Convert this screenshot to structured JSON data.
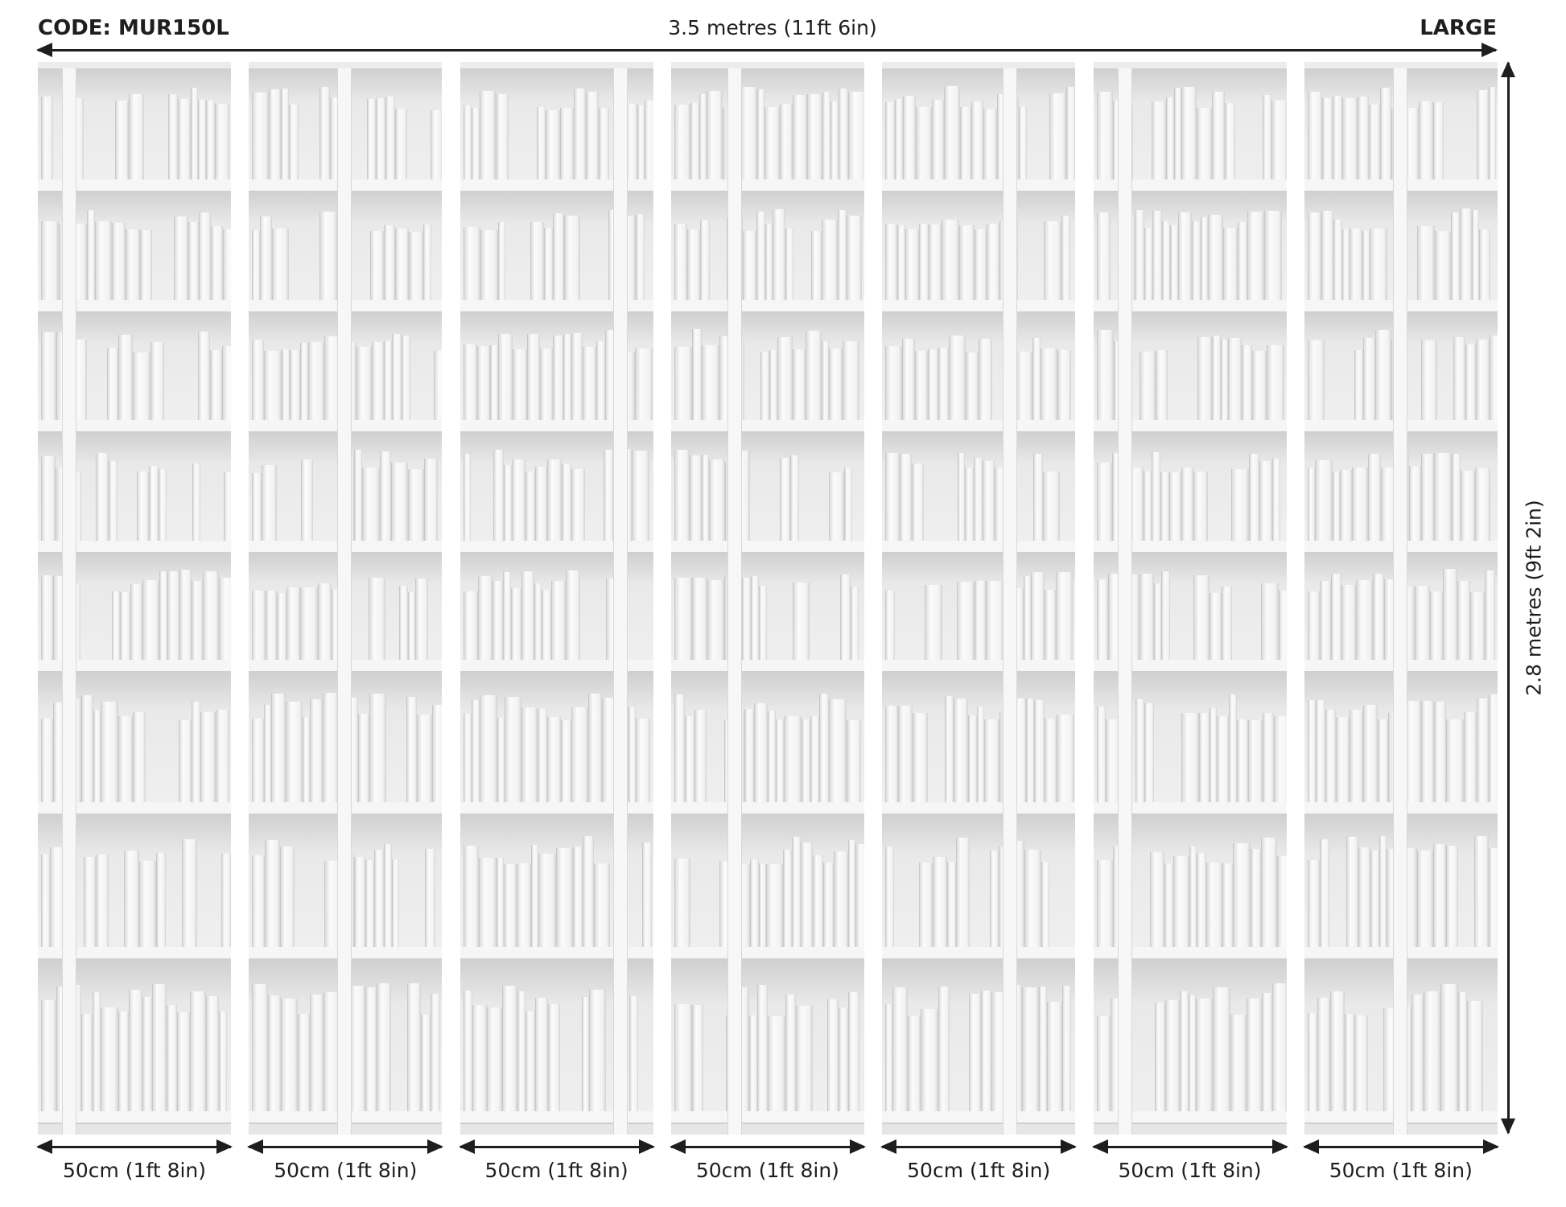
{
  "header": {
    "code": "CODE: MUR150L",
    "width_label": "3.5 metres (11ft 6in)",
    "size": "LARGE"
  },
  "height_label": "2.8 metres (9ft 2in)",
  "panels": [
    {
      "label": "50cm (1ft 8in)"
    },
    {
      "label": "50cm (1ft 8in)"
    },
    {
      "label": "50cm (1ft 8in)"
    },
    {
      "label": "50cm (1ft 8in)"
    },
    {
      "label": "50cm (1ft 8in)"
    },
    {
      "label": "50cm (1ft 8in)"
    },
    {
      "label": "50cm (1ft 8in)"
    }
  ]
}
